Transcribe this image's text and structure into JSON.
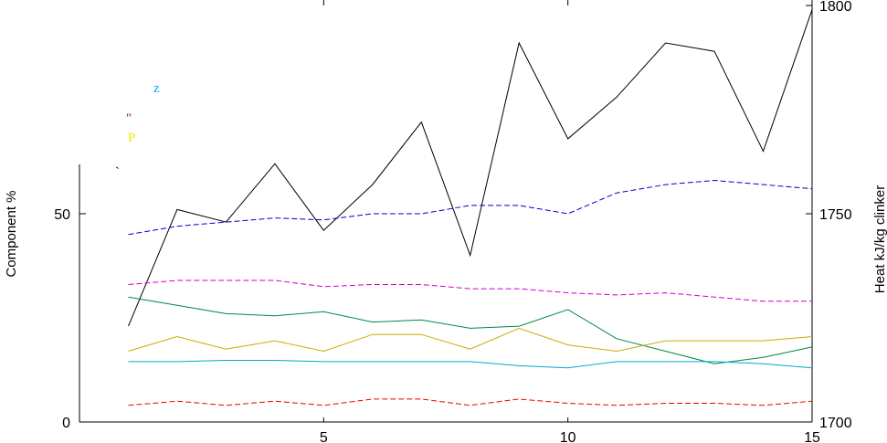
{
  "chart_data": {
    "type": "line",
    "title": "",
    "ylabel_left": "Component %",
    "ylabel_right": "Heat kJ/kg clinker",
    "x_ticks": [
      5,
      10,
      15
    ],
    "y_left_ticks": [
      0,
      50
    ],
    "y_right_ticks": [
      1700,
      1750,
      1800
    ],
    "xlim": [
      0,
      15
    ],
    "ylim_left": [
      0,
      100
    ],
    "ylim_right": [
      1700,
      1800
    ],
    "x": [
      1,
      2,
      3,
      4,
      5,
      6,
      7,
      8,
      9,
      10,
      11,
      12,
      13,
      14,
      15
    ],
    "series": [
      {
        "axis": "right",
        "color": "#000000",
        "dash": "",
        "values": [
          1723,
          1751,
          1748,
          1762,
          1746,
          1757,
          1772,
          1740,
          1791,
          1768,
          1778,
          1791,
          1789,
          1765,
          1799
        ]
      },
      {
        "axis": "left",
        "color": "#0000cc",
        "dash": "6,3",
        "values": [
          45,
          47,
          48,
          49,
          48.5,
          50,
          50,
          52,
          52,
          50,
          55,
          57,
          58,
          57,
          56
        ]
      },
      {
        "axis": "left",
        "color": "#cc00cc",
        "dash": "6,3",
        "values": [
          33,
          34,
          34,
          34,
          32.5,
          33,
          33,
          32,
          32,
          31,
          30.5,
          31,
          30,
          29,
          29
        ]
      },
      {
        "axis": "left",
        "color": "#008844",
        "dash": "",
        "values": [
          30,
          28,
          26,
          25.5,
          26.5,
          24,
          24.5,
          22.5,
          23,
          27,
          20,
          17,
          14,
          15.5,
          18
        ]
      },
      {
        "axis": "left",
        "color": "#ccaa00",
        "dash": "",
        "values": [
          17,
          20.5,
          17.5,
          19.5,
          17,
          21,
          21,
          17.5,
          22.5,
          18.5,
          17,
          19.5,
          19.5,
          19.5,
          20.5
        ]
      },
      {
        "axis": "left",
        "color": "#00aacc",
        "dash": "",
        "values": [
          14.5,
          14.5,
          14.8,
          14.8,
          14.5,
          14.5,
          14.5,
          14.5,
          13.5,
          13,
          14.5,
          14.5,
          14.5,
          14,
          13
        ]
      },
      {
        "axis": "left",
        "color": "#ee0000",
        "dash": "6,3",
        "values": [
          4,
          5,
          4,
          5,
          4,
          5.5,
          5.5,
          4,
          5.5,
          4.5,
          4,
          4.5,
          4.5,
          4,
          5
        ]
      }
    ],
    "legend_marks": [
      {
        "text": "z",
        "color": "#00aaff"
      },
      {
        "text": "ʺ",
        "color": "#9900aa"
      },
      {
        "text": "P",
        "color": "#eeee00"
      },
      {
        "text": "ˎ",
        "color": "#000000"
      }
    ]
  }
}
